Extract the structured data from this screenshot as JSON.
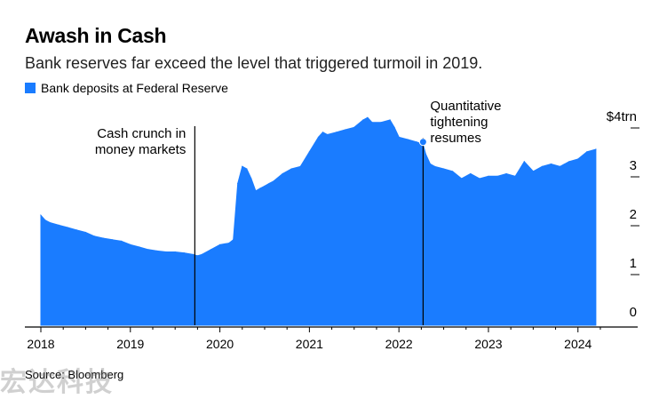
{
  "header": {
    "title": "Awash in Cash",
    "subtitle": "Bank reserves far exceed the level that triggered turmoil in 2019."
  },
  "legend": {
    "label": "Bank deposits at Federal Reserve"
  },
  "footer": {
    "source": "Source: Bloomberg",
    "watermark": "宏达科技"
  },
  "colors": {
    "series": "#1a7cff",
    "text": "#000000",
    "axis": "#000000"
  },
  "chart_data": {
    "type": "area",
    "title": "Awash in Cash",
    "subtitle": "Bank reserves far exceed the level that triggered turmoil in 2019.",
    "xlabel": "",
    "ylabel": "",
    "xlim": [
      2018.0,
      2024.32
    ],
    "ylim": [
      0,
      4
    ],
    "x_ticks": [
      2018,
      2019,
      2020,
      2021,
      2022,
      2023,
      2024
    ],
    "y_ticks": [
      0,
      1,
      2,
      3,
      4
    ],
    "y_tick_labels": [
      "0",
      "1",
      "2",
      "3",
      "$4trn"
    ],
    "y_axis_position": "right",
    "grid": false,
    "legend_position": "top-left",
    "series": [
      {
        "name": "Bank deposits at Federal Reserve",
        "x": [
          2018.0,
          2018.05,
          2018.1,
          2018.2,
          2018.3,
          2018.4,
          2018.5,
          2018.6,
          2018.7,
          2018.8,
          2018.9,
          2019.0,
          2019.1,
          2019.2,
          2019.3,
          2019.4,
          2019.5,
          2019.6,
          2019.7,
          2019.75,
          2019.8,
          2019.9,
          2020.0,
          2020.1,
          2020.15,
          2020.2,
          2020.25,
          2020.3,
          2020.35,
          2020.4,
          2020.45,
          2020.5,
          2020.55,
          2020.6,
          2020.7,
          2020.8,
          2020.9,
          2021.0,
          2021.1,
          2021.15,
          2021.2,
          2021.3,
          2021.4,
          2021.5,
          2021.6,
          2021.65,
          2021.7,
          2021.8,
          2021.9,
          2021.95,
          2022.0,
          2022.1,
          2022.2,
          2022.27,
          2022.3,
          2022.35,
          2022.4,
          2022.5,
          2022.6,
          2022.7,
          2022.8,
          2022.9,
          2023.0,
          2023.1,
          2023.2,
          2023.3,
          2023.4,
          2023.5,
          2023.6,
          2023.7,
          2023.8,
          2023.9,
          2024.0,
          2024.1,
          2024.2
        ],
        "values": [
          2.25,
          2.15,
          2.1,
          2.05,
          2.0,
          1.95,
          1.9,
          1.82,
          1.78,
          1.75,
          1.72,
          1.65,
          1.6,
          1.55,
          1.52,
          1.5,
          1.5,
          1.48,
          1.45,
          1.42,
          1.45,
          1.55,
          1.65,
          1.68,
          1.75,
          2.9,
          3.25,
          3.2,
          3.0,
          2.75,
          2.8,
          2.85,
          2.9,
          2.95,
          3.1,
          3.2,
          3.25,
          3.55,
          3.85,
          3.95,
          3.9,
          3.95,
          4.0,
          4.05,
          4.2,
          4.25,
          4.15,
          4.15,
          4.2,
          4.05,
          3.85,
          3.8,
          3.75,
          3.7,
          3.5,
          3.3,
          3.25,
          3.2,
          3.15,
          3.0,
          3.1,
          3.0,
          3.05,
          3.05,
          3.1,
          3.05,
          3.35,
          3.15,
          3.25,
          3.3,
          3.25,
          3.35,
          3.4,
          3.55,
          3.6
        ]
      }
    ],
    "annotations": [
      {
        "x": 2019.72,
        "lines": [
          "Cash crunch in",
          "money markets"
        ],
        "anchor": "left"
      },
      {
        "x": 2022.27,
        "value": 3.75,
        "lines": [
          "Quantitative",
          "tightening",
          "resumes"
        ],
        "anchor": "right"
      }
    ]
  }
}
